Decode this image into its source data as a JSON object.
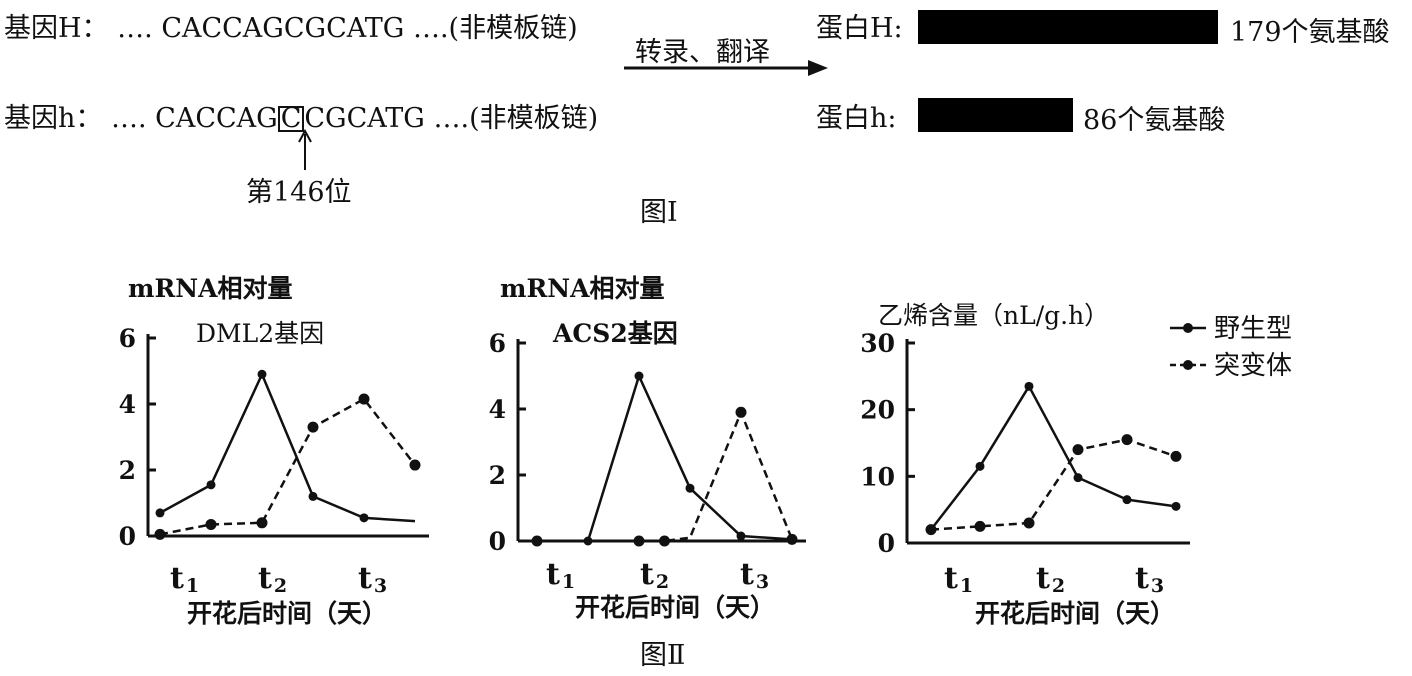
{
  "fig1": {
    "geneH_label": "基因H：",
    "geneH_dots_left": "….",
    "geneH_seq": "CACCAGCGCATG",
    "geneH_dots_right": "….",
    "geneH_note": "(非模板链)",
    "geneh_label": "基因h：",
    "geneh_dots_left": "….",
    "geneh_seq_a": "CACCAG",
    "geneh_seq_box": "C",
    "geneh_seq_b": "CGCATG",
    "geneh_dots_right": "….",
    "geneh_note": "(非模板链)",
    "position_label": "第146位",
    "arrow_label": "转录、翻译",
    "proteinH_label": "蛋白H:",
    "proteinH_aa": "179个氨基酸",
    "proteinh_label": "蛋白h:",
    "proteinh_aa": "86个氨基酸",
    "caption": "图Ⅰ"
  },
  "fig2_caption": "图Ⅱ",
  "legend": {
    "wild": "野生型",
    "mutant": "突变体"
  },
  "chart_data": [
    {
      "type": "line",
      "ylabel": "mRNA相对量",
      "title": "DML2基因",
      "xlabel": "开花后时间（天）",
      "ylim": [
        0,
        6
      ],
      "yticks": [
        "0",
        "2",
        "4",
        "6"
      ],
      "xtick_labels": [
        {
          "main": "t",
          "sub": "1",
          "at": 0
        },
        {
          "main": "t",
          "sub": "2",
          "at": 2
        },
        {
          "main": "t",
          "sub": "3",
          "at": 4
        }
      ],
      "series": [
        {
          "name": "野生型",
          "style": "solid",
          "points": [
            [
              0,
              0.7
            ],
            [
              1,
              1.55
            ],
            [
              2,
              4.9
            ],
            [
              3,
              1.2
            ],
            [
              4,
              0.55
            ],
            [
              5,
              0.45
            ]
          ],
          "markers": [
            0,
            1,
            2,
            3,
            4
          ]
        },
        {
          "name": "突变体",
          "style": "dashed",
          "points": [
            [
              0,
              0.05
            ],
            [
              1,
              0.35
            ],
            [
              2,
              0.4
            ],
            [
              3,
              3.3
            ],
            [
              4,
              4.15
            ],
            [
              5,
              2.15
            ]
          ],
          "markers": [
            0,
            1,
            2,
            3,
            4,
            5
          ]
        }
      ]
    },
    {
      "type": "line",
      "ylabel": "mRNA相对量",
      "title": "ACS2基因",
      "xlabel": "开花后时间（天）",
      "ylim": [
        0,
        6
      ],
      "yticks": [
        "0",
        "2",
        "4",
        "6"
      ],
      "xtick_labels": [
        {
          "main": "t",
          "sub": "1",
          "at": 0
        },
        {
          "main": "t",
          "sub": "2",
          "at": 2
        },
        {
          "main": "t",
          "sub": "3",
          "at": 4
        }
      ],
      "series": [
        {
          "name": "野生型",
          "style": "solid",
          "points": [
            [
              0,
              0
            ],
            [
              1,
              0
            ],
            [
              2,
              5.0
            ],
            [
              3,
              1.6
            ],
            [
              4,
              0.15
            ],
            [
              5,
              0.05
            ]
          ],
          "markers": [
            0,
            1,
            2,
            3,
            4
          ]
        },
        {
          "name": "突变体",
          "style": "dashed",
          "points": [
            [
              0,
              0
            ],
            [
              1,
              0
            ],
            [
              2,
              0
            ],
            [
              2.5,
              0
            ],
            [
              3,
              0.1
            ],
            [
              4,
              3.9
            ],
            [
              5,
              0.05
            ]
          ],
          "markers": [
            0,
            2,
            2.5,
            4,
            5
          ]
        }
      ]
    },
    {
      "type": "line",
      "ylabel": "乙烯含量（nL/g.h）",
      "title": "",
      "xlabel": "开花后时间（天）",
      "ylim": [
        0,
        30
      ],
      "yticks": [
        "0",
        "10",
        "20",
        "30"
      ],
      "xtick_labels": [
        {
          "main": "t",
          "sub": "1",
          "at": 0
        },
        {
          "main": "t",
          "sub": "2",
          "at": 2
        },
        {
          "main": "t",
          "sub": "3",
          "at": 4
        }
      ],
      "series": [
        {
          "name": "野生型",
          "style": "solid",
          "points": [
            [
              0,
              2
            ],
            [
              1,
              11.5
            ],
            [
              2,
              23.5
            ],
            [
              3,
              9.8
            ],
            [
              4,
              6.5
            ],
            [
              5,
              5.5
            ]
          ],
          "markers": [
            0,
            1,
            2,
            3,
            4,
            5
          ]
        },
        {
          "name": "突变体",
          "style": "dashed",
          "points": [
            [
              0,
              2
            ],
            [
              1,
              2.5
            ],
            [
              2,
              3
            ],
            [
              3,
              14
            ],
            [
              4,
              15.5
            ],
            [
              5,
              13
            ]
          ],
          "markers": [
            0,
            1,
            2,
            3,
            4,
            5
          ]
        }
      ]
    }
  ]
}
